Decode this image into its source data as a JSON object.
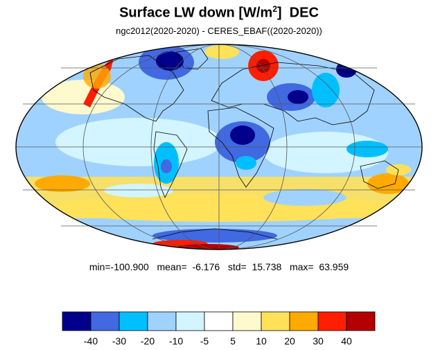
{
  "figure": {
    "title_main": "Surface LW down [W/m",
    "title_sup": "2",
    "title_end": "]  DEC",
    "subtitle": "ngc2012(2020-2020) - CERES_EBAF((2020-2020))",
    "stats": "min=-100.900   mean=  -6.176   std=  15.738   max=  63.959"
  },
  "map": {
    "projection": "Mollweide",
    "graticule_lon_step_deg": 60,
    "graticule_lat_step_deg": 30,
    "background_color": "#ffffff",
    "coastline_color": "#000000"
  },
  "colorbar": {
    "colors": [
      "#00008c",
      "#4169e1",
      "#00bfff",
      "#a0d2ff",
      "#d2f5ff",
      "#ffffff",
      "#fffacd",
      "#ffe15a",
      "#ffaa00",
      "#ff1e00",
      "#b40000"
    ],
    "tick_labels": [
      "-40",
      "-30",
      "-20",
      "-10",
      "-5",
      "5",
      "10",
      "20",
      "30",
      "40"
    ]
  }
}
